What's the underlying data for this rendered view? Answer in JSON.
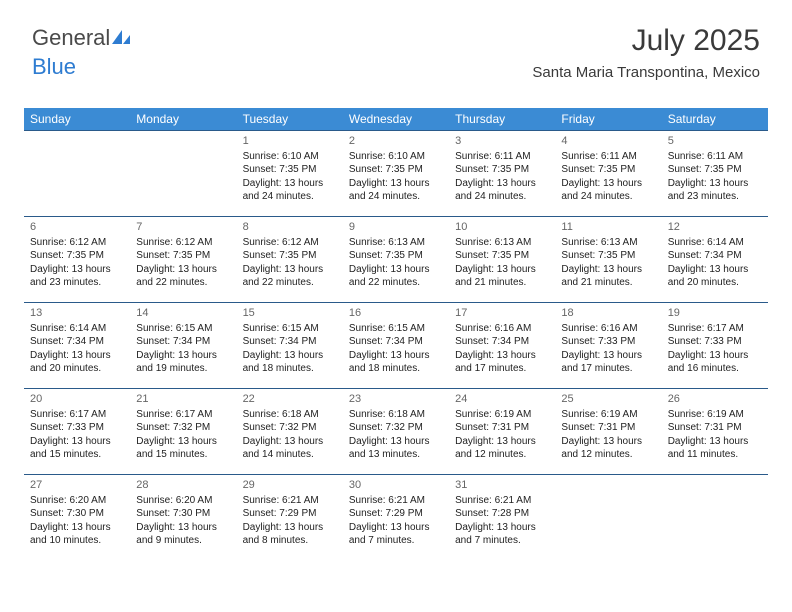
{
  "logo": {
    "text1": "General",
    "text2": "Blue"
  },
  "header": {
    "monthYear": "July 2025",
    "location": "Santa Maria Transpontina, Mexico"
  },
  "colors": {
    "headerBg": "#3b8bd4",
    "headerText": "#ffffff",
    "rowBorder": "#2a5a8a",
    "logoBlue": "#2e7cd1",
    "bodyText": "#222222"
  },
  "dayNames": [
    "Sunday",
    "Monday",
    "Tuesday",
    "Wednesday",
    "Thursday",
    "Friday",
    "Saturday"
  ],
  "startOffset": 2,
  "days": [
    {
      "n": 1,
      "sr": "6:10 AM",
      "ss": "7:35 PM",
      "dl": "13 hours and 24 minutes."
    },
    {
      "n": 2,
      "sr": "6:10 AM",
      "ss": "7:35 PM",
      "dl": "13 hours and 24 minutes."
    },
    {
      "n": 3,
      "sr": "6:11 AM",
      "ss": "7:35 PM",
      "dl": "13 hours and 24 minutes."
    },
    {
      "n": 4,
      "sr": "6:11 AM",
      "ss": "7:35 PM",
      "dl": "13 hours and 24 minutes."
    },
    {
      "n": 5,
      "sr": "6:11 AM",
      "ss": "7:35 PM",
      "dl": "13 hours and 23 minutes."
    },
    {
      "n": 6,
      "sr": "6:12 AM",
      "ss": "7:35 PM",
      "dl": "13 hours and 23 minutes."
    },
    {
      "n": 7,
      "sr": "6:12 AM",
      "ss": "7:35 PM",
      "dl": "13 hours and 22 minutes."
    },
    {
      "n": 8,
      "sr": "6:12 AM",
      "ss": "7:35 PM",
      "dl": "13 hours and 22 minutes."
    },
    {
      "n": 9,
      "sr": "6:13 AM",
      "ss": "7:35 PM",
      "dl": "13 hours and 22 minutes."
    },
    {
      "n": 10,
      "sr": "6:13 AM",
      "ss": "7:35 PM",
      "dl": "13 hours and 21 minutes."
    },
    {
      "n": 11,
      "sr": "6:13 AM",
      "ss": "7:35 PM",
      "dl": "13 hours and 21 minutes."
    },
    {
      "n": 12,
      "sr": "6:14 AM",
      "ss": "7:34 PM",
      "dl": "13 hours and 20 minutes."
    },
    {
      "n": 13,
      "sr": "6:14 AM",
      "ss": "7:34 PM",
      "dl": "13 hours and 20 minutes."
    },
    {
      "n": 14,
      "sr": "6:15 AM",
      "ss": "7:34 PM",
      "dl": "13 hours and 19 minutes."
    },
    {
      "n": 15,
      "sr": "6:15 AM",
      "ss": "7:34 PM",
      "dl": "13 hours and 18 minutes."
    },
    {
      "n": 16,
      "sr": "6:15 AM",
      "ss": "7:34 PM",
      "dl": "13 hours and 18 minutes."
    },
    {
      "n": 17,
      "sr": "6:16 AM",
      "ss": "7:34 PM",
      "dl": "13 hours and 17 minutes."
    },
    {
      "n": 18,
      "sr": "6:16 AM",
      "ss": "7:33 PM",
      "dl": "13 hours and 17 minutes."
    },
    {
      "n": 19,
      "sr": "6:17 AM",
      "ss": "7:33 PM",
      "dl": "13 hours and 16 minutes."
    },
    {
      "n": 20,
      "sr": "6:17 AM",
      "ss": "7:33 PM",
      "dl": "13 hours and 15 minutes."
    },
    {
      "n": 21,
      "sr": "6:17 AM",
      "ss": "7:32 PM",
      "dl": "13 hours and 15 minutes."
    },
    {
      "n": 22,
      "sr": "6:18 AM",
      "ss": "7:32 PM",
      "dl": "13 hours and 14 minutes."
    },
    {
      "n": 23,
      "sr": "6:18 AM",
      "ss": "7:32 PM",
      "dl": "13 hours and 13 minutes."
    },
    {
      "n": 24,
      "sr": "6:19 AM",
      "ss": "7:31 PM",
      "dl": "13 hours and 12 minutes."
    },
    {
      "n": 25,
      "sr": "6:19 AM",
      "ss": "7:31 PM",
      "dl": "13 hours and 12 minutes."
    },
    {
      "n": 26,
      "sr": "6:19 AM",
      "ss": "7:31 PM",
      "dl": "13 hours and 11 minutes."
    },
    {
      "n": 27,
      "sr": "6:20 AM",
      "ss": "7:30 PM",
      "dl": "13 hours and 10 minutes."
    },
    {
      "n": 28,
      "sr": "6:20 AM",
      "ss": "7:30 PM",
      "dl": "13 hours and 9 minutes."
    },
    {
      "n": 29,
      "sr": "6:21 AM",
      "ss": "7:29 PM",
      "dl": "13 hours and 8 minutes."
    },
    {
      "n": 30,
      "sr": "6:21 AM",
      "ss": "7:29 PM",
      "dl": "13 hours and 7 minutes."
    },
    {
      "n": 31,
      "sr": "6:21 AM",
      "ss": "7:28 PM",
      "dl": "13 hours and 7 minutes."
    }
  ],
  "labels": {
    "sunrise": "Sunrise:",
    "sunset": "Sunset:",
    "daylight": "Daylight:"
  }
}
